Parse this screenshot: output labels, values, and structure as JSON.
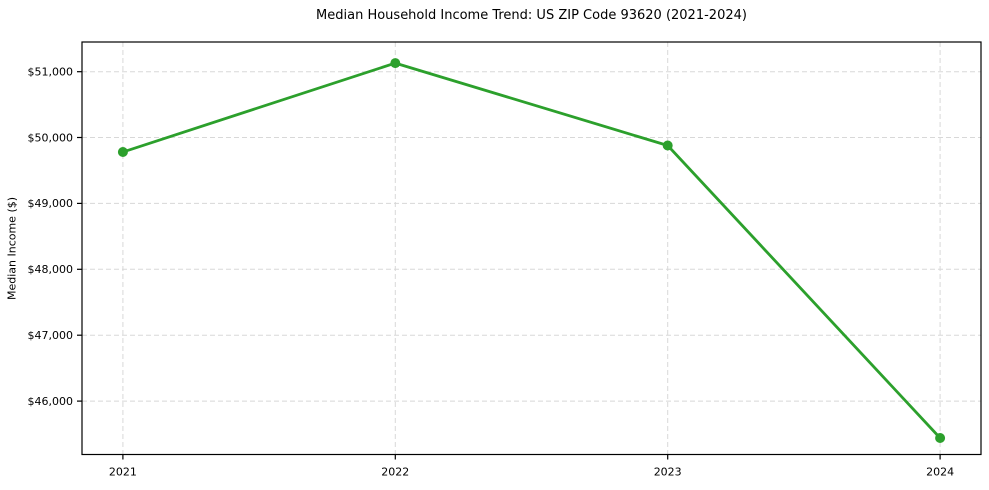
{
  "chart": {
    "title": "Median Household Income Trend: US ZIP Code 93620 (2021-2024)",
    "ylabel": "Median Income ($)"
  },
  "chart_data": {
    "type": "line",
    "title": "Median Household Income Trend: US ZIP Code 93620 (2021-2024)",
    "xlabel": "",
    "ylabel": "Median Income ($)",
    "categories": [
      "2021",
      "2022",
      "2023",
      "2024"
    ],
    "x": [
      2021,
      2022,
      2023,
      2024
    ],
    "series": [
      {
        "name": "Median household income",
        "values": [
          49780,
          51130,
          49880,
          45440
        ]
      }
    ],
    "xlim": [
      2020.85,
      2024.15
    ],
    "ylim": [
      45190,
      51450
    ],
    "yticks": [
      {
        "value": 46000,
        "label": "$46,000"
      },
      {
        "value": 47000,
        "label": "$47,000"
      },
      {
        "value": 48000,
        "label": "$48,000"
      },
      {
        "value": 49000,
        "label": "$49,000"
      },
      {
        "value": 50000,
        "label": "$50,000"
      },
      {
        "value": 51000,
        "label": "$51,000"
      }
    ],
    "grid": true,
    "grid_style": "dashed",
    "legend": "none",
    "colors": {
      "line": "#2ca02c",
      "marker": "#2ca02c",
      "grid": "#d8d8d8",
      "spine": "#000000",
      "text": "#000000"
    }
  }
}
